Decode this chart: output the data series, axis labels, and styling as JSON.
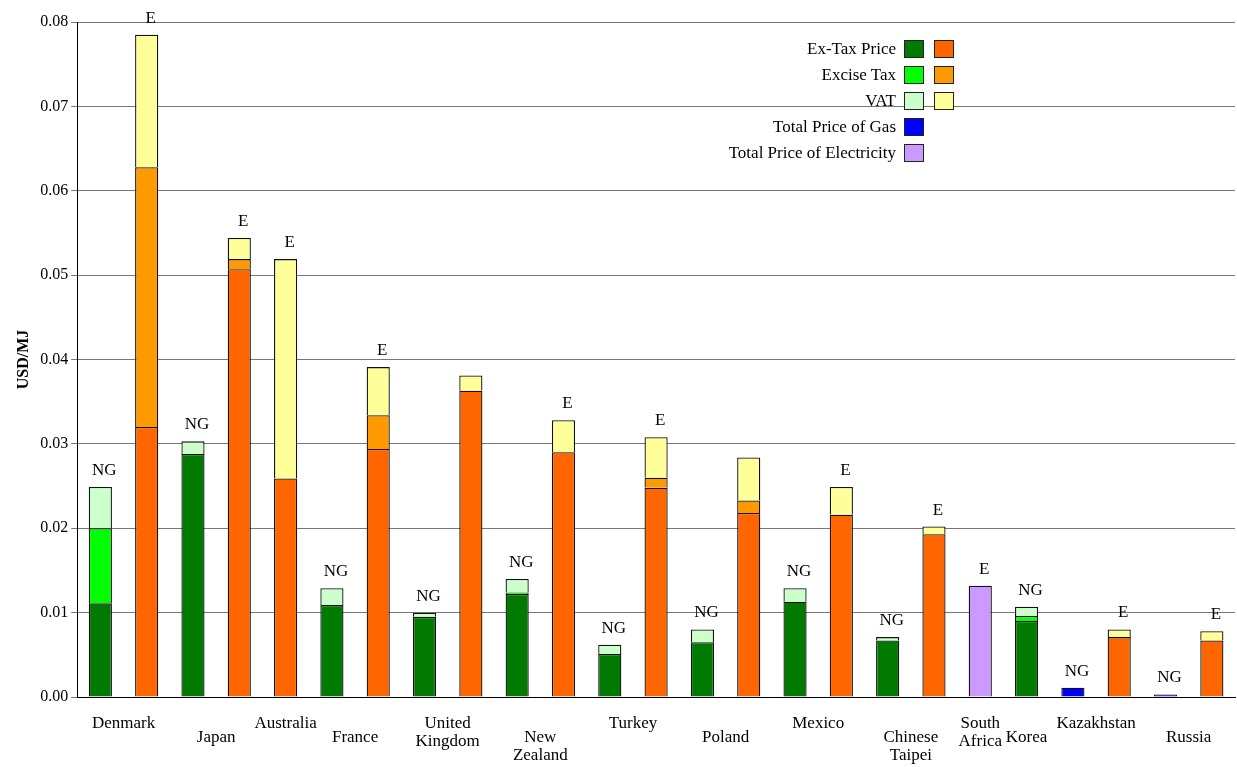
{
  "chart_data": {
    "type": "bar",
    "stacked": true,
    "ylabel": "USD/MJ",
    "categories": [
      "Denmark",
      null,
      "Japan",
      null,
      "Australia",
      "France",
      null,
      "United Kingdom",
      null,
      "New Zealand",
      null,
      "Turkey",
      null,
      "Poland",
      null,
      "Mexico",
      null,
      "Chinese Taipei",
      null,
      "South Africa",
      "Korea",
      "Kazakhstan",
      null,
      "Russia",
      null
    ],
    "series": [
      {
        "name": "Ex-Tax Price",
        "color": "#007a00",
        "values": [
          0.0111,
          null,
          0.0288,
          null,
          null,
          0.0109,
          null,
          0.0095,
          null,
          0.0122,
          null,
          0.0051,
          null,
          0.0065,
          null,
          0.0113,
          null,
          0.0067,
          null,
          null,
          0.009,
          null,
          null,
          null,
          null
        ]
      },
      {
        "name": "Excise Tax",
        "color": "#00ff00",
        "values": [
          0.0089,
          null,
          null,
          null,
          null,
          null,
          null,
          null,
          null,
          0.0002,
          null,
          null,
          null,
          null,
          null,
          null,
          null,
          null,
          null,
          null,
          0.0006,
          null,
          null,
          null,
          null
        ]
      },
      {
        "name": "VAT",
        "color": "#ccffcc",
        "values": [
          0.0049,
          null,
          0.0015,
          null,
          null,
          0.002,
          null,
          0.0005,
          null,
          0.0016,
          null,
          0.0011,
          null,
          0.0015,
          null,
          0.0016,
          null,
          0.0004,
          null,
          null,
          0.0011,
          null,
          null,
          null,
          null
        ],
        "value_labels": [
          "NG",
          null,
          "NG",
          null,
          null,
          "NG",
          null,
          "NG",
          null,
          "NG",
          null,
          "NG",
          null,
          "NG",
          null,
          "NG",
          null,
          "NG",
          null,
          null,
          "NG",
          null,
          null,
          null,
          null
        ]
      },
      {
        "color": "#ff6600",
        "values": [
          null,
          0.032,
          null,
          0.0507,
          0.0259,
          null,
          0.0294,
          null,
          0.0363,
          null,
          0.029,
          null,
          0.0248,
          null,
          0.0218,
          null,
          0.0216,
          null,
          0.0193,
          null,
          null,
          null,
          0.0071,
          null,
          0.0067
        ]
      },
      {
        "color": "#ff9900",
        "values": [
          null,
          0.0308,
          null,
          0.0012,
          null,
          null,
          0.004,
          null,
          null,
          null,
          null,
          null,
          0.0012,
          null,
          0.0015,
          null,
          null,
          null,
          null,
          null,
          null,
          null,
          null,
          null,
          null
        ]
      },
      {
        "color": "#ffff99",
        "values": [
          null,
          0.0157,
          null,
          0.0025,
          0.026,
          null,
          0.0057,
          null,
          0.0018,
          null,
          0.0038,
          null,
          0.0048,
          null,
          0.0051,
          null,
          0.0033,
          null,
          0.0009,
          null,
          null,
          null,
          0.0009,
          null,
          0.0011
        ],
        "value_labels": [
          null,
          "E",
          null,
          "E",
          "E",
          null,
          "E",
          null,
          null,
          null,
          "E",
          null,
          "E",
          null,
          null,
          null,
          "E",
          null,
          "E",
          null,
          null,
          null,
          "E",
          null,
          "E"
        ]
      },
      {
        "name": "Total Price of Gas",
        "color": "#0000ff",
        "values": [
          null,
          null,
          null,
          null,
          null,
          null,
          null,
          null,
          null,
          null,
          null,
          null,
          null,
          null,
          null,
          null,
          null,
          null,
          null,
          null,
          null,
          0.0011,
          null,
          0.0003,
          null
        ],
        "value_labels": [
          null,
          null,
          null,
          null,
          null,
          null,
          null,
          null,
          null,
          null,
          null,
          null,
          null,
          null,
          null,
          null,
          null,
          null,
          null,
          null,
          null,
          "NG",
          null,
          "NG",
          null
        ]
      },
      {
        "name": "Total Price of Electricity",
        "color": "#cc99ff",
        "values": [
          null,
          null,
          null,
          null,
          null,
          null,
          null,
          null,
          null,
          null,
          null,
          null,
          null,
          null,
          null,
          null,
          null,
          null,
          null,
          0.0132,
          null,
          null,
          null,
          null,
          null
        ],
        "value_labels": [
          null,
          null,
          null,
          null,
          null,
          null,
          null,
          null,
          null,
          null,
          null,
          null,
          null,
          null,
          null,
          null,
          null,
          null,
          null,
          "E",
          null,
          null,
          null,
          null,
          null
        ]
      }
    ],
    "ylim": [
      0,
      0.08
    ],
    "yticks": [
      {
        "value": 0,
        "label": "0.00"
      },
      {
        "value": 0.01,
        "label": "0.01"
      },
      {
        "value": 0.02,
        "label": "0.02"
      },
      {
        "value": 0.03,
        "label": "0.03"
      },
      {
        "value": 0.04,
        "label": "0.04"
      },
      {
        "value": 0.05,
        "label": "0.05"
      },
      {
        "value": 0.06,
        "label": "0.06"
      },
      {
        "value": 0.07,
        "label": "0.07"
      },
      {
        "value": 0.08,
        "label": "0.08"
      }
    ],
    "grid": "y",
    "legend": "top right"
  }
}
